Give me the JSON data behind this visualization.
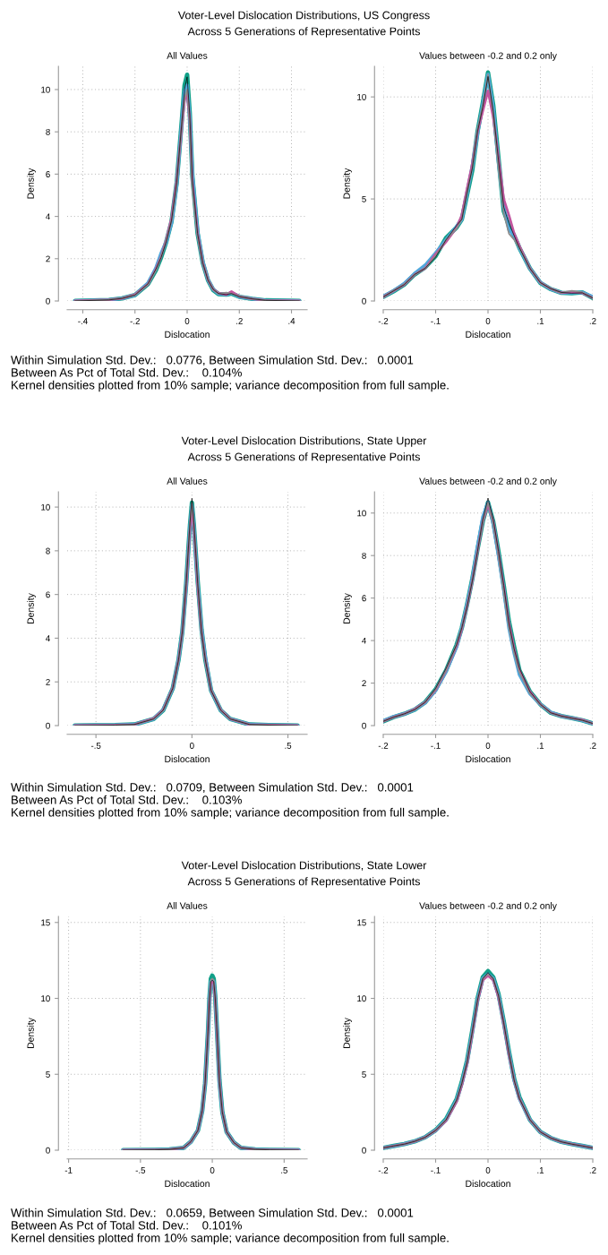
{
  "chart_data": [
    {
      "type": "line",
      "title": "All Values",
      "xlabel": "Dislocation",
      "ylabel": "Density",
      "grid": true,
      "annotations": [
        "Voter-Level Dislocation Distributions, US Congress",
        "Across 5 Generations of Representative Points"
      ],
      "xlim": [
        -0.46,
        0.46
      ],
      "ylim": [
        0,
        11.1
      ],
      "xticks": [
        {
          "value": -0.4,
          "label": "-.4"
        },
        {
          "value": -0.2,
          "label": "-.2"
        },
        0,
        {
          "value": 0.2,
          "label": ".2"
        },
        {
          "value": 0.4,
          "label": ".4"
        }
      ],
      "yticks": [
        0,
        2,
        4,
        6,
        8,
        10
      ],
      "x": [
        -0.43,
        -0.3,
        -0.25,
        -0.2,
        -0.15,
        -0.12,
        -0.1,
        -0.08,
        -0.06,
        -0.04,
        -0.02,
        -0.01,
        0,
        0.01,
        0.02,
        0.04,
        0.06,
        0.08,
        0.1,
        0.12,
        0.15,
        0.17,
        0.2,
        0.25,
        0.3,
        0.43
      ],
      "series": [
        {
          "color": "#11a088",
          "values": [
            0,
            0.05,
            0.12,
            0.28,
            0.8,
            1.45,
            2.05,
            2.8,
            3.75,
            5.6,
            8.6,
            10.2,
            10.7,
            8.9,
            5.9,
            3.2,
            1.8,
            0.98,
            0.52,
            0.33,
            0.3,
            0.35,
            0.2,
            0.1,
            0.03,
            0
          ]
        },
        {
          "color": "#4fa8dc",
          "values": [
            0,
            0.05,
            0.12,
            0.28,
            0.85,
            1.55,
            2.25,
            2.8,
            3.7,
            5.5,
            8.5,
            9.9,
            10.2,
            8.7,
            6.0,
            3.3,
            1.85,
            1.0,
            0.55,
            0.35,
            0.3,
            0.38,
            0.2,
            0.1,
            0.03,
            0
          ]
        },
        {
          "color": "#c2559e",
          "values": [
            0,
            0.06,
            0.12,
            0.3,
            0.8,
            1.5,
            2.1,
            2.9,
            3.9,
            5.7,
            8.3,
            9.5,
            9.8,
            8.6,
            5.6,
            3.2,
            1.8,
            1.0,
            0.55,
            0.38,
            0.3,
            0.45,
            0.22,
            0.1,
            0.03,
            0
          ]
        },
        {
          "color": "#8c8c8c",
          "values": [
            0,
            0.06,
            0.13,
            0.28,
            0.8,
            1.45,
            2.1,
            2.85,
            3.8,
            5.5,
            8.4,
            9.6,
            10.0,
            8.5,
            5.3,
            3.1,
            1.8,
            1.0,
            0.55,
            0.35,
            0.4,
            0.35,
            0.22,
            0.1,
            0.03,
            0
          ]
        },
        {
          "color": "#000000",
          "values": [
            0,
            0.05,
            0.12,
            0.28,
            0.82,
            1.5,
            2.05,
            2.8,
            3.8,
            5.6,
            8.5,
            10.0,
            10.6,
            8.8,
            5.8,
            3.2,
            1.8,
            0.98,
            0.55,
            0.35,
            0.3,
            0.35,
            0.2,
            0.1,
            0.03,
            0
          ]
        }
      ]
    },
    {
      "type": "line",
      "title": "Values between -0.2 and 0.2 only",
      "xlabel": "Dislocation",
      "ylabel": "Density",
      "grid": true,
      "annotations": [
        "Within Simulation Std. Dev.:   0.0776, Between Simulation Std. Dev.:   0.0001",
        "Between As Pct of Total Std. Dev.:    0.104%",
        "Kernel densities plotted from 10% sample; variance decomposition from full sample."
      ],
      "xlim": [
        -0.2,
        0.2
      ],
      "ylim": [
        0,
        11.5
      ],
      "xticks": [
        {
          "value": -0.2,
          "label": "-.2"
        },
        {
          "value": -0.1,
          "label": "-.1"
        },
        0,
        {
          "value": 0.1,
          "label": ".1"
        },
        {
          "value": 0.2,
          "label": ".2"
        }
      ],
      "yticks": [
        0,
        5,
        10
      ],
      "x": [
        -0.2,
        -0.18,
        -0.16,
        -0.14,
        -0.12,
        -0.1,
        -0.08,
        -0.06,
        -0.05,
        -0.04,
        -0.03,
        -0.02,
        -0.01,
        0,
        0.01,
        0.02,
        0.03,
        0.04,
        0.05,
        0.06,
        0.08,
        0.1,
        0.12,
        0.14,
        0.16,
        0.18,
        0.2
      ],
      "series": [
        {
          "color": "#11a088",
          "values": [
            0.2,
            0.48,
            0.8,
            1.3,
            1.65,
            2.2,
            3.1,
            3.6,
            4.0,
            5.2,
            6.4,
            8.3,
            9.7,
            11.2,
            9.6,
            7.0,
            4.4,
            3.7,
            3.2,
            2.6,
            1.6,
            0.88,
            0.58,
            0.4,
            0.38,
            0.42,
            0.15
          ]
        },
        {
          "color": "#4fa8dc",
          "values": [
            0.22,
            0.5,
            0.85,
            1.35,
            1.75,
            2.35,
            3.0,
            3.65,
            4.0,
            5.3,
            6.6,
            8.2,
            9.6,
            11.1,
            9.4,
            6.8,
            4.6,
            3.5,
            3.2,
            2.6,
            1.6,
            0.9,
            0.58,
            0.4,
            0.4,
            0.42,
            0.2
          ]
        },
        {
          "color": "#c2559e",
          "values": [
            0.2,
            0.5,
            0.8,
            1.3,
            1.6,
            2.3,
            2.9,
            3.6,
            4.2,
            5.5,
            6.7,
            8.3,
            9.3,
            10.3,
            9.0,
            7.0,
            5.0,
            4.2,
            3.3,
            2.7,
            1.6,
            0.9,
            0.6,
            0.4,
            0.45,
            0.4,
            0.15
          ]
        },
        {
          "color": "#8c8c8c",
          "values": [
            0.2,
            0.5,
            0.82,
            1.3,
            1.6,
            2.2,
            3.0,
            3.55,
            4.0,
            5.3,
            6.5,
            8.4,
            9.6,
            11.1,
            9.2,
            6.5,
            4.3,
            3.3,
            3.0,
            2.6,
            1.6,
            0.9,
            0.6,
            0.4,
            0.5,
            0.42,
            0.15
          ]
        },
        {
          "color": "#000000",
          "values": [
            0.2,
            0.5,
            0.8,
            1.3,
            1.6,
            2.15,
            3.0,
            3.7,
            4.0,
            5.3,
            6.5,
            8.3,
            9.5,
            11.0,
            9.3,
            6.9,
            4.6,
            3.8,
            3.2,
            2.6,
            1.6,
            0.9,
            0.6,
            0.42,
            0.38,
            0.4,
            0.15
          ]
        }
      ]
    },
    {
      "type": "line",
      "title": "All Values",
      "xlabel": "Dislocation",
      "ylabel": "Density",
      "grid": true,
      "annotations": [
        "Voter-Level Dislocation Distributions, State Upper",
        "Across 5 Generations of Representative Points"
      ],
      "xlim": [
        -0.65,
        0.6
      ],
      "ylim": [
        0,
        10.7
      ],
      "xticks": [
        {
          "value": -0.5,
          "label": "-.5"
        },
        0,
        {
          "value": 0.5,
          "label": ".5"
        }
      ],
      "yticks": [
        0,
        2,
        4,
        6,
        8,
        10
      ],
      "x": [
        -0.61,
        -0.4,
        -0.3,
        -0.2,
        -0.15,
        -0.1,
        -0.07,
        -0.05,
        -0.03,
        -0.02,
        -0.01,
        0,
        0.01,
        0.02,
        0.03,
        0.05,
        0.07,
        0.1,
        0.15,
        0.2,
        0.3,
        0.4,
        0.55
      ],
      "series": [
        {
          "color": "#11a088",
          "values": [
            0,
            0.02,
            0.05,
            0.3,
            0.7,
            1.7,
            3.0,
            4.3,
            6.5,
            7.9,
            9.2,
            10.2,
            9.2,
            7.9,
            6.6,
            4.4,
            3.0,
            1.6,
            0.7,
            0.3,
            0.05,
            0.02,
            0
          ]
        },
        {
          "color": "#4fa8dc",
          "values": [
            0,
            0.02,
            0.05,
            0.3,
            0.72,
            1.7,
            3.0,
            4.3,
            6.4,
            7.8,
            9.1,
            10.1,
            9.1,
            7.8,
            6.5,
            4.4,
            3.1,
            1.6,
            0.7,
            0.3,
            0.05,
            0.02,
            0
          ]
        },
        {
          "color": "#c2559e",
          "values": [
            0,
            0.02,
            0.05,
            0.32,
            0.72,
            1.72,
            3.0,
            4.3,
            6.4,
            7.8,
            9.0,
            10.0,
            9.0,
            7.8,
            6.4,
            4.3,
            3.0,
            1.6,
            0.72,
            0.3,
            0.05,
            0.02,
            0
          ]
        },
        {
          "color": "#8c8c8c",
          "values": [
            0,
            0.02,
            0.05,
            0.3,
            0.7,
            1.7,
            3.0,
            4.3,
            6.5,
            7.9,
            9.2,
            10.2,
            9.2,
            7.9,
            6.5,
            4.3,
            3.0,
            1.6,
            0.7,
            0.3,
            0.05,
            0.02,
            0
          ]
        },
        {
          "color": "#000000",
          "values": [
            0,
            0.02,
            0.05,
            0.3,
            0.7,
            1.7,
            3.0,
            4.3,
            6.5,
            7.9,
            9.3,
            10.4,
            9.3,
            7.9,
            6.5,
            4.3,
            3.0,
            1.6,
            0.7,
            0.3,
            0.05,
            0.02,
            0
          ]
        }
      ]
    },
    {
      "type": "line",
      "title": "Values between -0.2 and 0.2 only",
      "xlabel": "Dislocation",
      "ylabel": "Density",
      "grid": true,
      "annotations": [
        "Within Simulation Std. Dev.:   0.0709, Between Simulation Std. Dev.:   0.0001",
        "Between As Pct of Total Std. Dev.:    0.103%",
        "Kernel densities plotted from 10% sample; variance decomposition from full sample."
      ],
      "xlim": [
        -0.2,
        0.2
      ],
      "ylim": [
        0,
        11
      ],
      "xticks": [
        {
          "value": -0.2,
          "label": "-.2"
        },
        {
          "value": -0.1,
          "label": "-.1"
        },
        0,
        {
          "value": 0.1,
          "label": ".1"
        },
        {
          "value": 0.2,
          "label": ".2"
        }
      ],
      "yticks": [
        0,
        2,
        4,
        6,
        8,
        10
      ],
      "x": [
        -0.2,
        -0.18,
        -0.16,
        -0.14,
        -0.12,
        -0.1,
        -0.08,
        -0.06,
        -0.05,
        -0.04,
        -0.03,
        -0.02,
        -0.01,
        0,
        0.01,
        0.02,
        0.03,
        0.04,
        0.05,
        0.06,
        0.08,
        0.1,
        0.12,
        0.14,
        0.16,
        0.18,
        0.2
      ],
      "series": [
        {
          "color": "#11a088",
          "values": [
            0.2,
            0.4,
            0.55,
            0.75,
            1.1,
            1.7,
            2.6,
            3.8,
            4.6,
            5.7,
            6.9,
            8.3,
            9.6,
            10.5,
            9.6,
            8.2,
            6.6,
            4.9,
            3.7,
            2.6,
            1.6,
            1.0,
            0.6,
            0.45,
            0.35,
            0.25,
            0.1
          ]
        },
        {
          "color": "#4fa8dc",
          "values": [
            0.22,
            0.42,
            0.55,
            0.75,
            1.08,
            1.65,
            2.55,
            3.7,
            4.6,
            5.7,
            6.9,
            8.4,
            9.8,
            10.5,
            9.5,
            8.0,
            6.4,
            4.6,
            3.4,
            2.4,
            1.5,
            1.0,
            0.62,
            0.45,
            0.35,
            0.25,
            0.1
          ]
        },
        {
          "color": "#c2559e",
          "values": [
            0.2,
            0.4,
            0.55,
            0.77,
            1.1,
            1.68,
            2.6,
            3.75,
            4.55,
            5.6,
            6.8,
            8.2,
            9.6,
            10.4,
            9.6,
            8.1,
            6.5,
            4.8,
            3.6,
            2.6,
            1.6,
            1.0,
            0.6,
            0.45,
            0.35,
            0.27,
            0.1
          ]
        },
        {
          "color": "#8c8c8c",
          "values": [
            0.2,
            0.4,
            0.55,
            0.75,
            1.1,
            1.7,
            2.6,
            3.8,
            4.6,
            5.6,
            6.8,
            8.2,
            9.6,
            10.5,
            9.5,
            8.0,
            6.3,
            4.6,
            3.4,
            2.5,
            1.5,
            1.0,
            0.6,
            0.45,
            0.35,
            0.25,
            0.1
          ]
        },
        {
          "color": "#000000",
          "values": [
            0.2,
            0.4,
            0.55,
            0.75,
            1.1,
            1.75,
            2.7,
            3.8,
            4.6,
            5.6,
            6.8,
            8.2,
            9.7,
            10.7,
            9.7,
            8.2,
            6.6,
            4.8,
            3.6,
            2.7,
            1.6,
            1.0,
            0.6,
            0.45,
            0.35,
            0.25,
            0.1
          ]
        }
      ]
    },
    {
      "type": "line",
      "title": "All Values",
      "xlabel": "Dislocation",
      "ylabel": "Density",
      "grid": true,
      "annotations": [
        "Voter-Level Dislocation Distributions, State Lower",
        "Across 5 Generations of Representative Points"
      ],
      "xlim": [
        -1.01,
        0.66
      ],
      "ylim": [
        0,
        15.4
      ],
      "xticks": [
        -1,
        {
          "value": -0.5,
          "label": "-.5"
        },
        0,
        {
          "value": 0.5,
          "label": ".5"
        }
      ],
      "yticks": [
        0,
        5,
        10,
        15
      ],
      "x": [
        -0.62,
        -0.4,
        -0.3,
        -0.2,
        -0.15,
        -0.1,
        -0.07,
        -0.05,
        -0.03,
        -0.02,
        -0.01,
        0,
        0.01,
        0.02,
        0.03,
        0.05,
        0.07,
        0.1,
        0.15,
        0.2,
        0.3,
        0.4,
        0.6
      ],
      "series": [
        {
          "color": "#11a088",
          "values": [
            0,
            0.02,
            0.05,
            0.15,
            0.55,
            1.3,
            2.6,
            4.4,
            7.8,
            10.0,
            11.3,
            11.5,
            11.3,
            10.2,
            8.4,
            4.6,
            2.5,
            1.2,
            0.5,
            0.15,
            0.05,
            0.02,
            0
          ]
        },
        {
          "color": "#4fa8dc",
          "values": [
            0,
            0.02,
            0.05,
            0.15,
            0.55,
            1.3,
            2.6,
            4.4,
            7.8,
            9.9,
            11.1,
            11.2,
            11.1,
            10.1,
            8.3,
            4.5,
            2.5,
            1.2,
            0.5,
            0.15,
            0.05,
            0.02,
            0
          ]
        },
        {
          "color": "#c2559e",
          "values": [
            0,
            0.02,
            0.05,
            0.15,
            0.55,
            1.3,
            2.6,
            4.4,
            7.7,
            9.8,
            11.0,
            11.1,
            11.0,
            10.0,
            8.2,
            4.5,
            2.5,
            1.2,
            0.5,
            0.15,
            0.05,
            0.02,
            0
          ]
        },
        {
          "color": "#8c8c8c",
          "values": [
            0,
            0.02,
            0.05,
            0.15,
            0.55,
            1.3,
            2.6,
            4.4,
            7.8,
            9.9,
            11.2,
            11.3,
            11.2,
            10.1,
            8.3,
            4.5,
            2.5,
            1.2,
            0.5,
            0.15,
            0.05,
            0.02,
            0
          ]
        },
        {
          "color": "#000000",
          "values": [
            0,
            0.02,
            0.05,
            0.15,
            0.55,
            1.3,
            2.6,
            4.4,
            7.8,
            9.9,
            11.1,
            11.2,
            11.1,
            10.1,
            8.3,
            4.5,
            2.5,
            1.2,
            0.5,
            0.15,
            0.05,
            0.02,
            0
          ]
        }
      ]
    },
    {
      "type": "line",
      "title": "Values between -0.2 and 0.2 only",
      "xlabel": "Dislocation",
      "ylabel": "Density",
      "grid": true,
      "annotations": [
        "Within Simulation Std. Dev.:   0.0659, Between Simulation Std. Dev.:   0.0001",
        "Between As Pct of Total Std. Dev.:    0.101%",
        "Kernel densities plotted from 10% sample; variance decomposition from full sample."
      ],
      "xlim": [
        -0.2,
        0.2
      ],
      "ylim": [
        0,
        15.4
      ],
      "xticks": [
        {
          "value": -0.2,
          "label": "-.2"
        },
        {
          "value": -0.1,
          "label": "-.1"
        },
        0,
        {
          "value": 0.1,
          "label": ".1"
        },
        {
          "value": 0.2,
          "label": ".2"
        }
      ],
      "yticks": [
        0,
        5,
        10,
        15
      ],
      "x": [
        -0.2,
        -0.18,
        -0.16,
        -0.14,
        -0.12,
        -0.1,
        -0.08,
        -0.06,
        -0.05,
        -0.04,
        -0.03,
        -0.02,
        -0.01,
        0,
        0.01,
        0.02,
        0.03,
        0.04,
        0.05,
        0.06,
        0.08,
        0.1,
        0.12,
        0.14,
        0.16,
        0.18,
        0.2
      ],
      "series": [
        {
          "color": "#11a088",
          "values": [
            0.15,
            0.28,
            0.4,
            0.58,
            0.85,
            1.32,
            2.05,
            3.35,
            4.5,
            5.9,
            7.9,
            10.0,
            11.4,
            11.8,
            11.4,
            10.3,
            8.5,
            6.5,
            4.7,
            3.5,
            2.0,
            1.2,
            0.8,
            0.55,
            0.4,
            0.28,
            0.15
          ]
        },
        {
          "color": "#4fa8dc",
          "values": [
            0.15,
            0.28,
            0.4,
            0.58,
            0.85,
            1.3,
            2.0,
            3.3,
            4.4,
            5.8,
            7.8,
            9.9,
            11.3,
            11.6,
            11.3,
            10.2,
            8.4,
            6.4,
            4.6,
            3.4,
            2.0,
            1.2,
            0.8,
            0.55,
            0.4,
            0.28,
            0.15
          ]
        },
        {
          "color": "#c2559e",
          "values": [
            0.15,
            0.28,
            0.4,
            0.58,
            0.85,
            1.3,
            1.95,
            3.2,
            4.3,
            5.7,
            7.7,
            9.8,
            11.2,
            11.5,
            11.2,
            10.1,
            8.3,
            6.3,
            4.6,
            3.4,
            2.0,
            1.2,
            0.8,
            0.55,
            0.4,
            0.28,
            0.15
          ]
        },
        {
          "color": "#8c8c8c",
          "values": [
            0.15,
            0.28,
            0.4,
            0.58,
            0.85,
            1.3,
            2.0,
            3.3,
            4.4,
            5.8,
            7.8,
            9.9,
            11.3,
            11.6,
            11.3,
            10.2,
            8.4,
            6.4,
            4.6,
            3.4,
            2.0,
            1.2,
            0.8,
            0.55,
            0.4,
            0.28,
            0.15
          ]
        },
        {
          "color": "#000000",
          "values": [
            0.15,
            0.28,
            0.4,
            0.58,
            0.85,
            1.3,
            2.0,
            3.3,
            4.4,
            5.8,
            7.8,
            9.9,
            11.3,
            11.7,
            11.3,
            10.2,
            8.4,
            6.4,
            4.6,
            3.4,
            2.0,
            1.2,
            0.8,
            0.55,
            0.4,
            0.28,
            0.15
          ]
        }
      ]
    }
  ]
}
